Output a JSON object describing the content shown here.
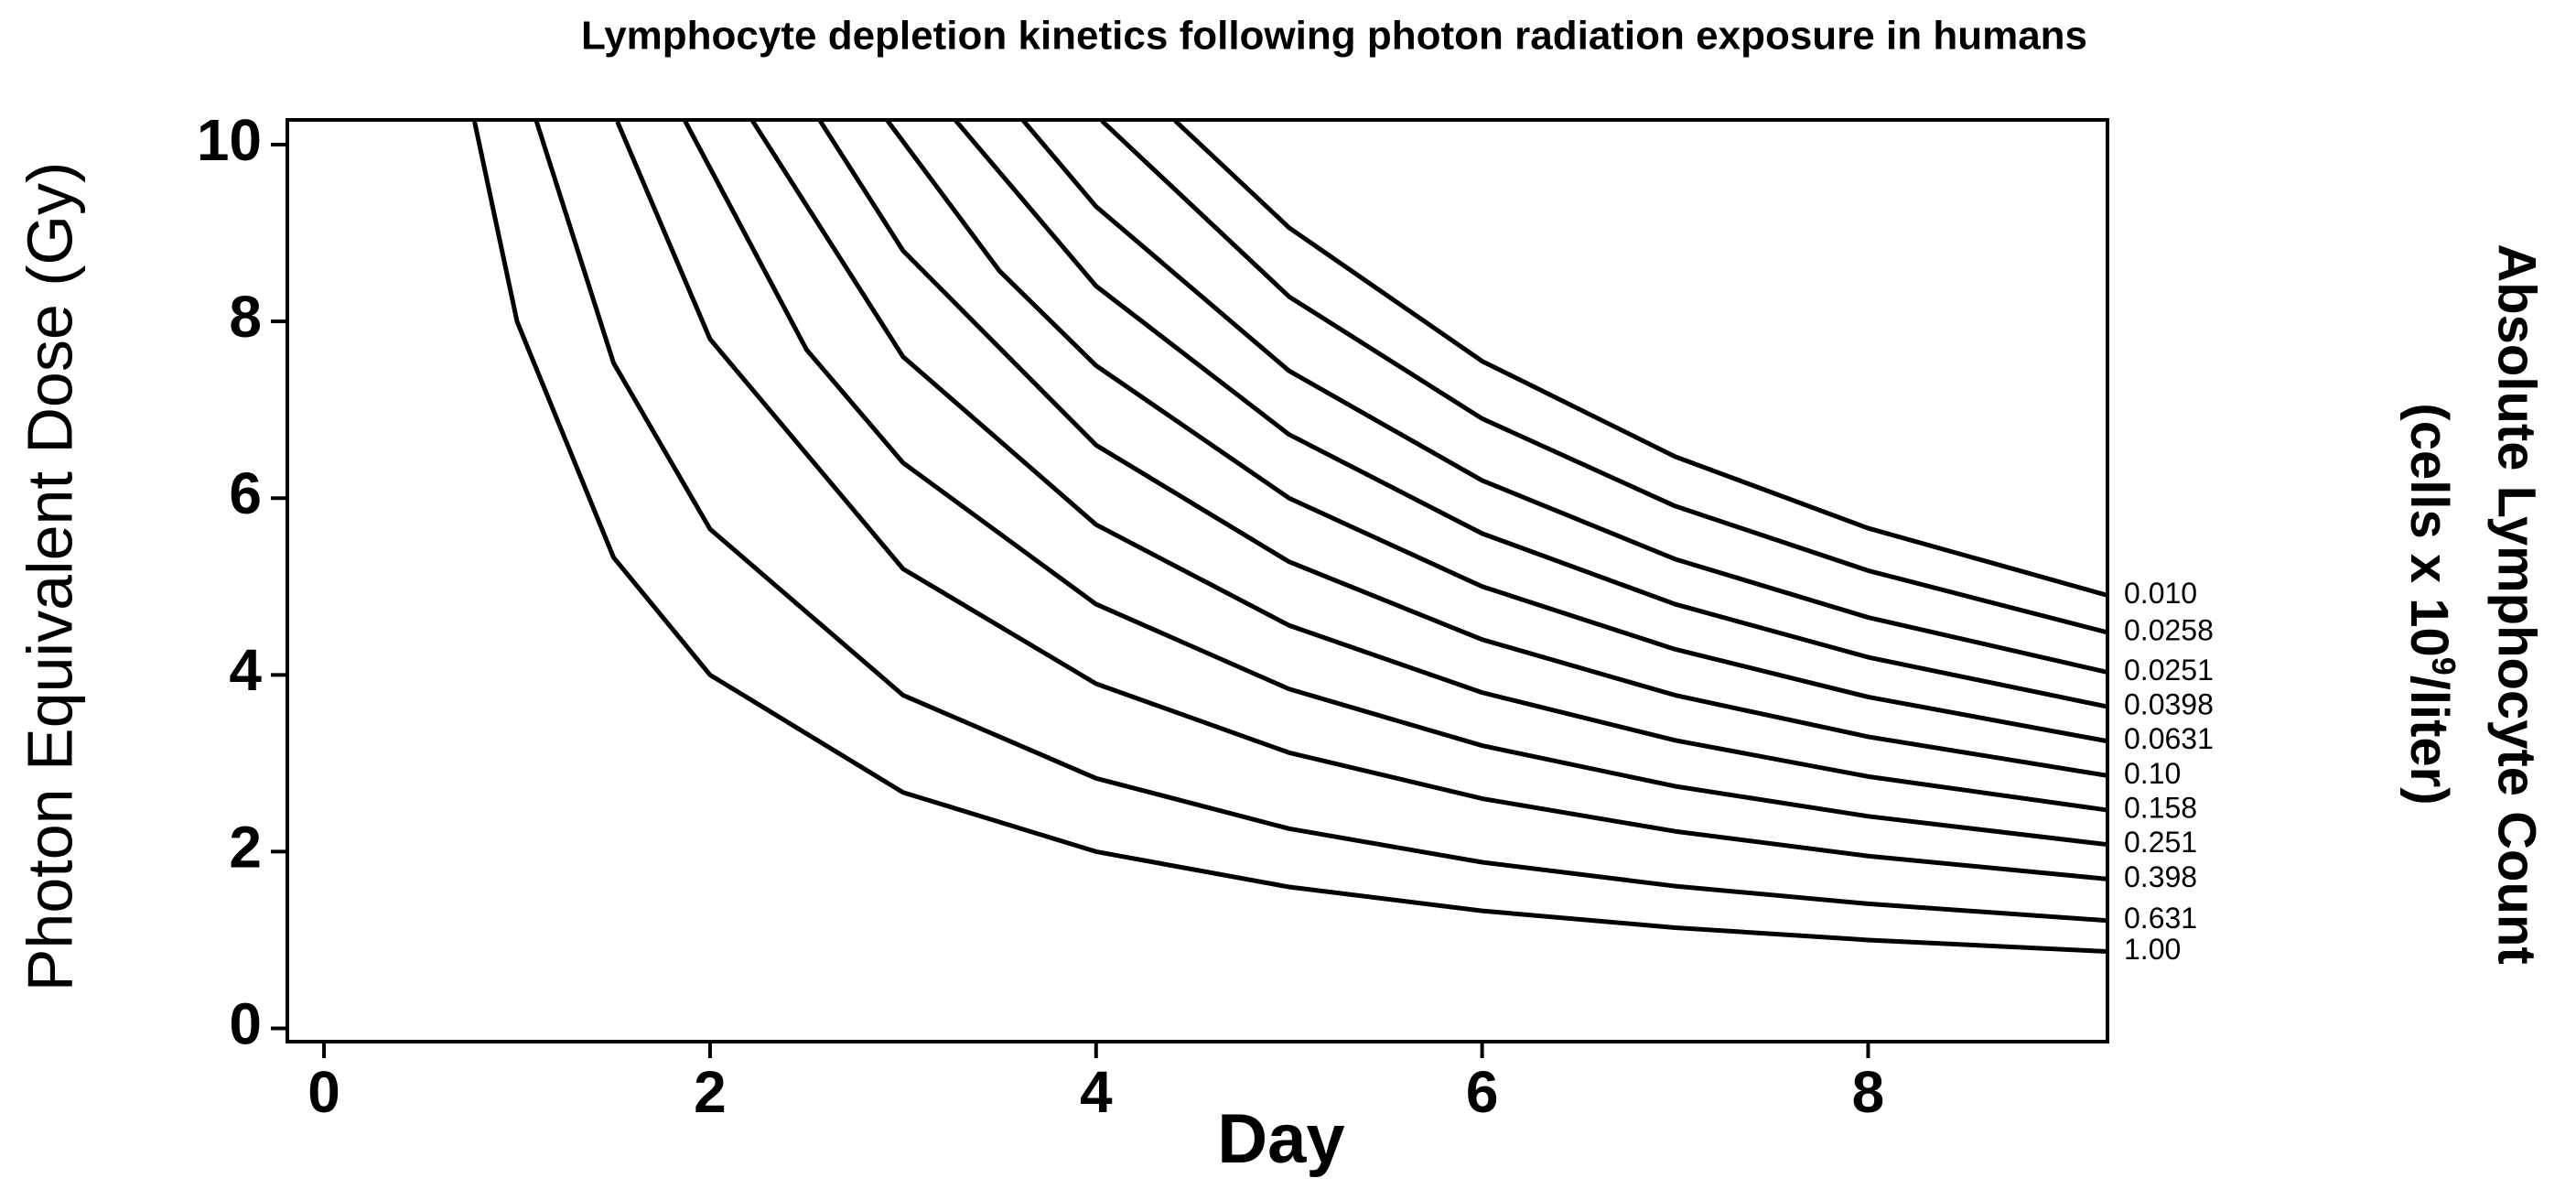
{
  "chart_data": {
    "type": "line",
    "title": "Lymphocyte depletion kinetics following photon radiation exposure in humans",
    "xlabel": "Day",
    "ylabel": "Photon Equivalent Dose (Gy)",
    "y2label": {
      "text": "Absolute Lymphocyte Count",
      "unit_prefix": "(cells x 10",
      "exponent": "9",
      "unit_suffix": "/liter)"
    },
    "xlim": [
      -0.19,
      9.24
    ],
    "ylim": [
      -0.15,
      10.28
    ],
    "xticks": [
      0,
      2,
      4,
      6,
      8
    ],
    "yticks": [
      0,
      2,
      4,
      6,
      8,
      10
    ],
    "color": "#000000",
    "series": [
      {
        "name": "1.00",
        "x": [
          0.78,
          1,
          1.5,
          2,
          3,
          4,
          5,
          6,
          7,
          8,
          9.24
        ],
        "values": [
          10.26,
          8.0,
          5.33,
          4.0,
          2.67,
          2.0,
          1.6,
          1.33,
          1.14,
          1.0,
          0.87
        ]
      },
      {
        "name": "0.631",
        "x": [
          1.1,
          1.5,
          2,
          3,
          4,
          5,
          6,
          7,
          8,
          9.24
        ],
        "values": [
          10.27,
          7.53,
          5.65,
          3.77,
          2.83,
          2.26,
          1.88,
          1.61,
          1.41,
          1.22
        ]
      },
      {
        "name": "0.398",
        "x": [
          1.52,
          2,
          3,
          4,
          5,
          6,
          7,
          8,
          9.24
        ],
        "values": [
          10.26,
          7.8,
          5.2,
          3.9,
          3.12,
          2.6,
          2.23,
          1.95,
          1.69
        ]
      },
      {
        "name": "0.251",
        "x": [
          1.87,
          2.5,
          3,
          4,
          5,
          6,
          7,
          8,
          9.24
        ],
        "values": [
          10.27,
          7.68,
          6.4,
          4.8,
          3.84,
          3.2,
          2.74,
          2.4,
          2.08
        ]
      },
      {
        "name": "0.158",
        "x": [
          2.22,
          3,
          4,
          5,
          6,
          7,
          8,
          9.24
        ],
        "values": [
          10.27,
          7.6,
          5.7,
          4.56,
          3.8,
          3.26,
          2.85,
          2.47
        ]
      },
      {
        "name": "0.10",
        "x": [
          2.57,
          3,
          4,
          5,
          6,
          7,
          8,
          9.24
        ],
        "values": [
          10.27,
          8.8,
          6.6,
          5.28,
          4.4,
          3.77,
          3.3,
          2.86
        ]
      },
      {
        "name": "0.0631",
        "x": [
          2.92,
          3.5,
          4,
          5,
          6,
          7,
          8,
          9.24
        ],
        "values": [
          10.27,
          8.57,
          7.5,
          6.0,
          5.0,
          4.29,
          3.75,
          3.25
        ]
      },
      {
        "name": "0.0398",
        "x": [
          3.27,
          4,
          5,
          6,
          7,
          8,
          9.24
        ],
        "values": [
          10.28,
          8.4,
          6.72,
          5.6,
          4.8,
          4.2,
          3.64
        ]
      },
      {
        "name": "0.0251",
        "x": [
          3.62,
          4,
          5,
          6,
          7,
          8,
          9.24
        ],
        "values": [
          10.28,
          9.3,
          7.44,
          6.2,
          5.31,
          4.65,
          4.03
        ]
      },
      {
        "name": "0.0258",
        "x": [
          4.03,
          5,
          6,
          7,
          8,
          9.24
        ],
        "values": [
          10.27,
          8.28,
          6.9,
          5.91,
          5.18,
          4.48
        ]
      },
      {
        "name": "0.010",
        "x": [
          4.41,
          5,
          6,
          7,
          8,
          9.24
        ],
        "values": [
          10.27,
          9.06,
          7.55,
          6.47,
          5.66,
          4.9
        ]
      }
    ]
  }
}
